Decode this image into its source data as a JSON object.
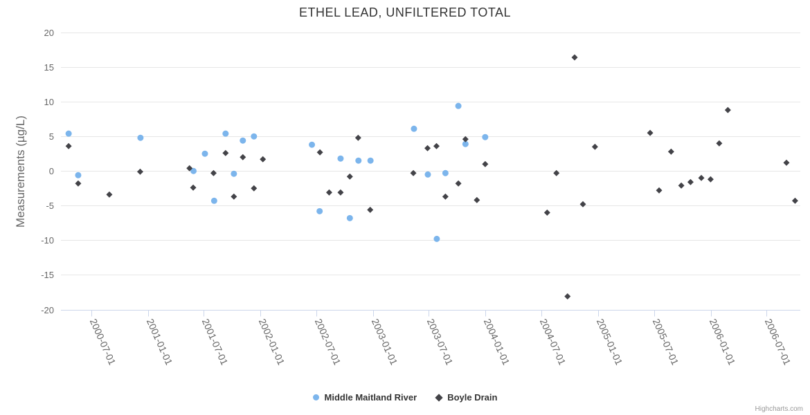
{
  "title": "ETHEL LEAD, UNFILTERED TOTAL",
  "credits": "Highcharts.com",
  "legend": [
    {
      "label": "Middle Maitland River",
      "marker": "circle",
      "color": "#7cb5ec"
    },
    {
      "label": "Boyle Drain",
      "marker": "diamond",
      "color": "#434348"
    }
  ],
  "colors": {
    "grid": "#e6e6e6",
    "axis_line": "#ccd6eb",
    "tick_label": "#666666",
    "title_text": "#333333"
  },
  "chart_data": {
    "type": "scatter",
    "title": "ETHEL LEAD, UNFILTERED TOTAL",
    "xlabel": "",
    "ylabel": "Measurements (µg/L)",
    "ylim": [
      -20,
      20
    ],
    "yticks": [
      20,
      15,
      10,
      5,
      0,
      -5,
      -10,
      -15,
      -20
    ],
    "xlim": [
      "2000-03-25",
      "2006-10-18"
    ],
    "xticks": [
      "2000-07-01",
      "2001-01-01",
      "2001-07-01",
      "2002-01-01",
      "2002-07-01",
      "2003-01-01",
      "2003-07-01",
      "2004-01-01",
      "2004-07-01",
      "2005-01-01",
      "2005-07-01",
      "2006-01-01",
      "2006-07-01"
    ],
    "grid": "horizontal",
    "legend_position": "bottom",
    "series": [
      {
        "name": "Middle Maitland River",
        "color": "#7cb5ec",
        "marker": "circle",
        "points": [
          [
            "2000-04-19",
            5.4
          ],
          [
            "2000-05-20",
            -0.6
          ],
          [
            "2000-12-08",
            4.8
          ],
          [
            "2001-05-29",
            0.0
          ],
          [
            "2001-07-05",
            2.5
          ],
          [
            "2001-08-04",
            -4.3
          ],
          [
            "2001-09-10",
            5.4
          ],
          [
            "2001-10-07",
            -0.4
          ],
          [
            "2001-11-05",
            4.4
          ],
          [
            "2001-12-11",
            5.0
          ],
          [
            "2002-06-17",
            3.8
          ],
          [
            "2002-07-12",
            -5.8
          ],
          [
            "2002-09-18",
            1.8
          ],
          [
            "2002-10-18",
            -6.8
          ],
          [
            "2002-11-15",
            1.5
          ],
          [
            "2002-12-24",
            1.5
          ],
          [
            "2003-05-14",
            6.1
          ],
          [
            "2003-06-28",
            -0.5
          ],
          [
            "2003-07-27",
            -9.8
          ],
          [
            "2003-08-24",
            -0.3
          ],
          [
            "2003-10-05",
            9.4
          ],
          [
            "2003-10-28",
            3.9
          ],
          [
            "2003-12-31",
            4.9
          ]
        ]
      },
      {
        "name": "Boyle Drain",
        "color": "#434348",
        "marker": "diamond",
        "points": [
          [
            "2000-04-19",
            3.6
          ],
          [
            "2000-05-20",
            -1.8
          ],
          [
            "2000-08-29",
            -3.4
          ],
          [
            "2000-12-07",
            -0.1
          ],
          [
            "2001-05-16",
            0.4
          ],
          [
            "2001-05-28",
            -2.4
          ],
          [
            "2001-08-02",
            -0.3
          ],
          [
            "2001-09-10",
            2.6
          ],
          [
            "2001-10-07",
            -3.7
          ],
          [
            "2001-11-05",
            2.0
          ],
          [
            "2001-12-11",
            -2.5
          ],
          [
            "2002-01-09",
            1.7
          ],
          [
            "2002-07-13",
            2.7
          ],
          [
            "2002-08-12",
            -3.1
          ],
          [
            "2002-09-18",
            -3.1
          ],
          [
            "2002-10-18",
            -0.8
          ],
          [
            "2002-11-14",
            4.8
          ],
          [
            "2002-12-23",
            -5.6
          ],
          [
            "2003-05-12",
            -0.3
          ],
          [
            "2003-06-27",
            3.3
          ],
          [
            "2003-07-26",
            3.6
          ],
          [
            "2003-08-24",
            -3.7
          ],
          [
            "2003-10-05",
            -1.8
          ],
          [
            "2003-10-28",
            4.6
          ],
          [
            "2003-12-04",
            -4.2
          ],
          [
            "2003-12-31",
            1.0
          ],
          [
            "2004-07-19",
            -6.0
          ],
          [
            "2004-08-18",
            -0.3
          ],
          [
            "2004-09-23",
            -18.1
          ],
          [
            "2004-10-16",
            16.4
          ],
          [
            "2004-11-12",
            -4.8
          ],
          [
            "2004-12-21",
            3.5
          ],
          [
            "2005-06-18",
            5.5
          ],
          [
            "2005-07-17",
            -2.8
          ],
          [
            "2005-08-25",
            2.8
          ],
          [
            "2005-09-27",
            -2.1
          ],
          [
            "2005-10-27",
            -1.6
          ],
          [
            "2005-12-01",
            -1.0
          ],
          [
            "2005-12-31",
            -1.2
          ],
          [
            "2006-01-28",
            4.0
          ],
          [
            "2006-02-25",
            8.8
          ],
          [
            "2006-09-03",
            1.2
          ],
          [
            "2006-10-01",
            -4.3
          ]
        ]
      }
    ]
  }
}
